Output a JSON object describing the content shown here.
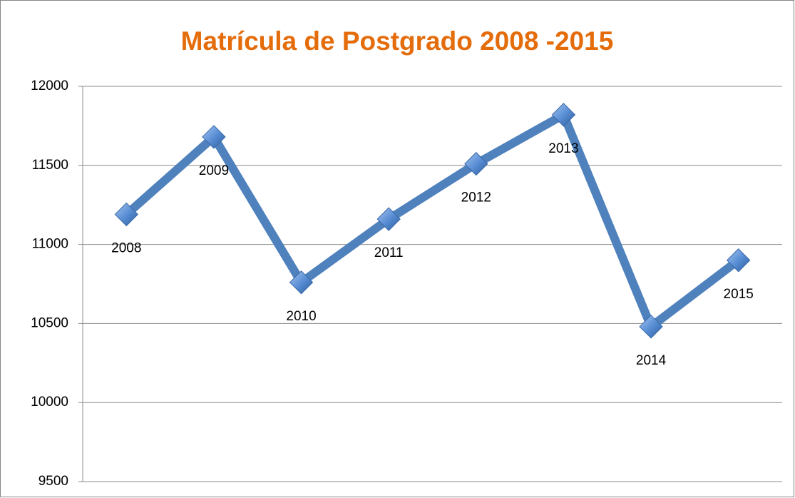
{
  "chart_data": {
    "type": "line",
    "title": "Matrícula de Postgrado 2008 -2015",
    "categories": [
      "2008",
      "2009",
      "2010",
      "2011",
      "2012",
      "2013",
      "2014",
      "2015"
    ],
    "values": [
      11190,
      11680,
      10760,
      11160,
      11510,
      11820,
      10480,
      10900
    ],
    "color": "#4f81bd",
    "ylim": [
      9500,
      12000
    ],
    "yticks": [
      9500,
      10000,
      10500,
      11000,
      11500,
      12000
    ],
    "grid": true
  }
}
